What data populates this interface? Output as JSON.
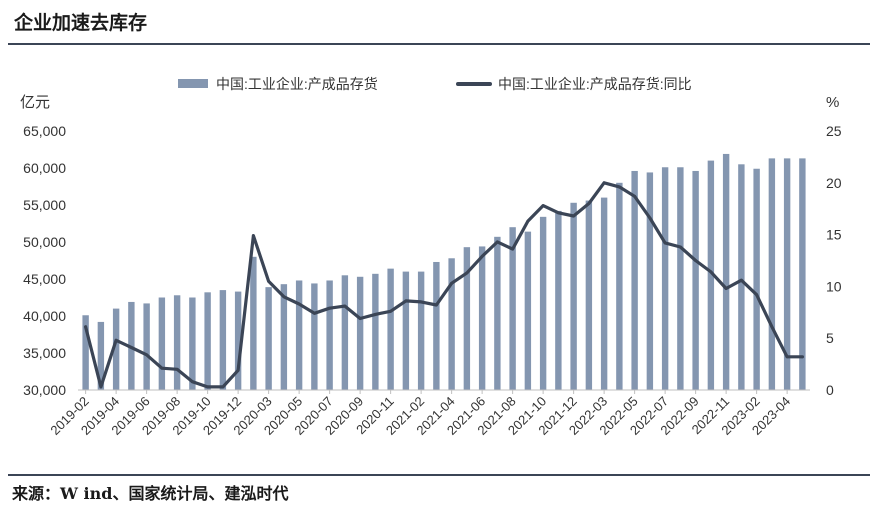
{
  "header": {
    "title": "企业加速去库存"
  },
  "footer": {
    "source": "来源：W ind、国家统计局、建泓时代"
  },
  "colors": {
    "bar": "#8496b0",
    "line": "#3b4556",
    "axis": "#bfbfbf"
  },
  "chart_data": {
    "type": "bar+line",
    "y_left_unit": "亿元",
    "y_right_unit": "%",
    "ylim_left": [
      30000,
      65000
    ],
    "ylim_right": [
      0,
      25
    ],
    "yticks_left": [
      "30,000",
      "35,000",
      "40,000",
      "45,000",
      "50,000",
      "55,000",
      "60,000",
      "65,000"
    ],
    "yticks_right": [
      "0",
      "5",
      "10",
      "15",
      "20",
      "25"
    ],
    "legend_position": "top",
    "grid": false,
    "categories": [
      "2019-02",
      "2019-03",
      "2019-04",
      "2019-05",
      "2019-06",
      "2019-07",
      "2019-08",
      "2019-09",
      "2019-10",
      "2019-11",
      "2019-12",
      "2020-02",
      "2020-03",
      "2020-04",
      "2020-05",
      "2020-06",
      "2020-07",
      "2020-08",
      "2020-09",
      "2020-10",
      "2020-11",
      "2020-12",
      "2021-02",
      "2021-03",
      "2021-04",
      "2021-05",
      "2021-06",
      "2021-07",
      "2021-08",
      "2021-09",
      "2021-10",
      "2021-11",
      "2021-12",
      "2022-02",
      "2022-03",
      "2022-04",
      "2022-05",
      "2022-06",
      "2022-07",
      "2022-08",
      "2022-09",
      "2022-10",
      "2022-11",
      "2022-12",
      "2023-02",
      "2023-03",
      "2023-04",
      "2023-05"
    ],
    "x_tick_labels": [
      "2019-02",
      "2019-04",
      "2019-06",
      "2019-08",
      "2019-10",
      "2019-12",
      "2020-03",
      "2020-05",
      "2020-07",
      "2020-09",
      "2020-11",
      "2021-02",
      "2021-04",
      "2021-06",
      "2021-08",
      "2021-10",
      "2021-12",
      "2022-03",
      "2022-05",
      "2022-07",
      "2022-09",
      "2022-11",
      "2023-02",
      "2023-04"
    ],
    "series": [
      {
        "name": "中国:工业企业:产成品存货",
        "type": "bar",
        "axis": "left",
        "values": [
          40100,
          39200,
          41000,
          41900,
          41700,
          42500,
          42800,
          42500,
          43200,
          43500,
          43300,
          48000,
          43900,
          44300,
          44800,
          44400,
          44800,
          45500,
          45300,
          45700,
          46400,
          46000,
          46000,
          47300,
          47800,
          49300,
          49400,
          50700,
          52000,
          51400,
          53400,
          54200,
          55300,
          55600,
          56000,
          58000,
          59600,
          59400,
          60100,
          60100,
          59600,
          61000,
          61900,
          60500,
          59900,
          61300,
          61300,
          61300
        ]
      },
      {
        "name": "中国:工业企业:产成品存货:同比",
        "type": "line",
        "axis": "right",
        "values": [
          6.1,
          0.3,
          4.8,
          4.1,
          3.4,
          2.1,
          2.0,
          0.8,
          0.3,
          0.3,
          1.9,
          14.9,
          10.5,
          9.0,
          8.3,
          7.4,
          7.9,
          8.1,
          6.9,
          7.3,
          7.6,
          8.6,
          8.5,
          8.2,
          10.3,
          11.3,
          12.9,
          14.3,
          13.6,
          16.3,
          17.8,
          17.1,
          16.8,
          18.0,
          20.0,
          19.6,
          18.7,
          16.6,
          14.2,
          13.8,
          12.5,
          11.4,
          9.8,
          10.6,
          9.2,
          6.1,
          3.2,
          3.2
        ]
      }
    ]
  }
}
